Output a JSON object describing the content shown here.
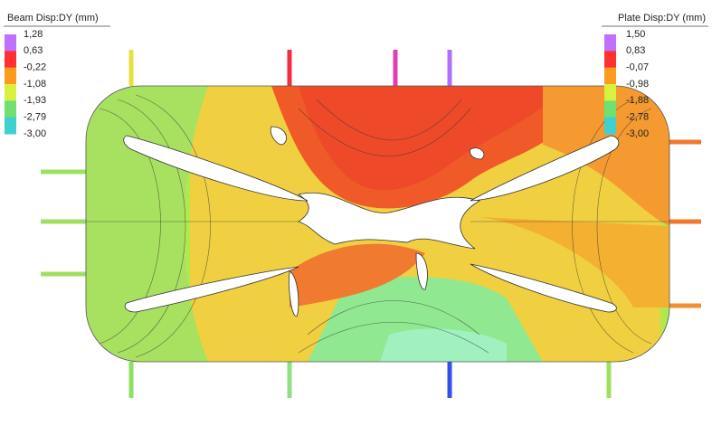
{
  "legends": [
    {
      "title": "Beam Disp:DY (mm)",
      "labels": [
        "1,28",
        "0,63",
        "-0,22",
        "-1,08",
        "-1,93",
        "-2,79",
        "-3,00"
      ],
      "colors": [
        "#c070ff",
        "#ff3030",
        "#ff9a20",
        "#d8f040",
        "#70e070",
        "#40d0d0",
        "#3060ff"
      ]
    },
    {
      "title": "Plate Disp:DY (mm)",
      "labels": [
        "1,50",
        "0,83",
        "-0,07",
        "-0,98",
        "-1,88",
        "-2,78",
        "-3,00"
      ],
      "colors": [
        "#c070ff",
        "#ff3030",
        "#ff9a20",
        "#d8f040",
        "#70e070",
        "#40d0d0",
        "#3060ff"
      ]
    }
  ]
}
